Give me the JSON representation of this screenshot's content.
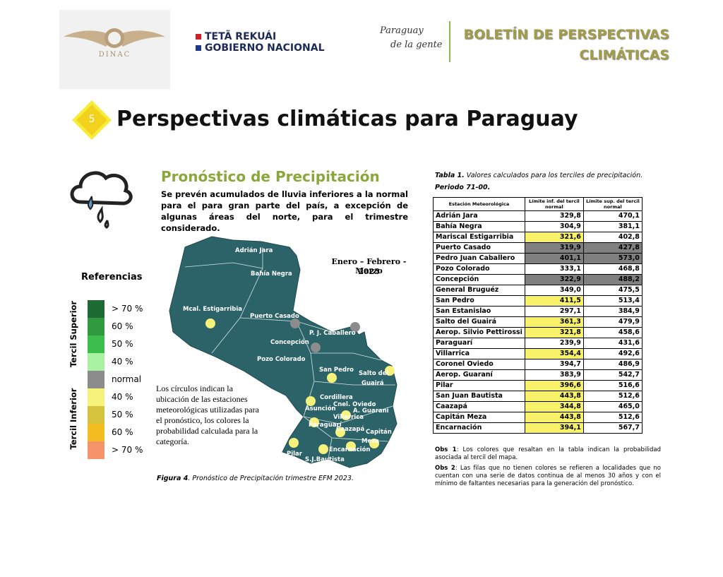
{
  "header": {
    "logo_text": "DINAC",
    "gov_line1": "TETÃ REKUÁI",
    "gov_line2": "GOBIERNO NACIONAL",
    "brand_line1": "Paraguay",
    "brand_line2": "de la gente",
    "bulletin_line1": "BOLETÍN DE PERSPECTIVAS",
    "bulletin_line2": "CLIMÁTICAS"
  },
  "section": {
    "number": "5",
    "title": "Perspectivas climáticas para Paraguay"
  },
  "forecast": {
    "title": "Pronóstico de Precipitación",
    "description": "Se prevén acumulados de lluvia inferiores a la normal para el para gran parte del país, a excepción de algunas áreas del norte, para el trimestre considerado."
  },
  "legend": {
    "title": "Referencias",
    "group_upper": "Tercil Superior",
    "group_lower": "Tercil Inferior",
    "items": [
      {
        "label": "> 70 %",
        "color": "#1d6a32"
      },
      {
        "label": "60 %",
        "color": "#2f9a3f"
      },
      {
        "label": "50 %",
        "color": "#3dbd4b"
      },
      {
        "label": "40 %",
        "color": "#a8f2a2"
      },
      {
        "label": "normal",
        "color": "#8c8c8c"
      },
      {
        "label": "40 %",
        "color": "#f6f27c"
      },
      {
        "label": "50 %",
        "color": "#d6c43e"
      },
      {
        "label": "60 %",
        "color": "#f3bd22"
      },
      {
        "label": "> 70 %",
        "color": "#f5946a"
      }
    ]
  },
  "map": {
    "period_line1": "Enero – Febrero - Marzo",
    "period_line2": "2023",
    "labels": [
      "Adrián Jara",
      "Bahía Negra",
      "Mcal. Estigarribia",
      "Puerto Casado",
      "P. J. Caballero",
      "Concepción",
      "Pozo Colorado",
      "San Pedro",
      "Salto del",
      "Guairá",
      "Cordillera",
      "Asunción",
      "Cnel. Oviedo",
      "A. Guarani",
      "Villarrica",
      "Paraguarí",
      "Caazapá",
      "Capitán",
      "Meza",
      "Pilar",
      "Encarnación",
      "S.J.Bautista"
    ],
    "note": "Los círculos indican la ubicación de las estaciones meteorológicas utilizadas para el pronóstico, los colores la probabilidad calculada para la categoría.",
    "caption_label": "Figura 4",
    "caption_text": ". Pronóstico de Precipitación trimestre EFM 2023."
  },
  "table": {
    "caption_label": "Tabla 1.",
    "caption_text": "Valores calculados para los terciles de precipitación.",
    "period": "Periodo 71-00.",
    "headers": [
      "Estación Meteorológica",
      "Límite inf. del tercil normal",
      "Límite sup. del tercil normal"
    ],
    "rows": [
      {
        "station": "Adrián Jara",
        "lower": "329,8",
        "upper": "470,1"
      },
      {
        "station": "Bahía Negra",
        "lower": "304,9",
        "upper": "381,1"
      },
      {
        "station": "Mariscal Estigarribia",
        "lower": "321,6",
        "upper": "402,8",
        "lower_color": "#f7f26a"
      },
      {
        "station": "Puerto Casado",
        "lower": "319,9",
        "upper": "427,8",
        "lower_color": "#808080",
        "upper_color": "#808080"
      },
      {
        "station": "Pedro Juan Caballero",
        "lower": "401,1",
        "upper": "573,0",
        "lower_color": "#808080",
        "upper_color": "#808080"
      },
      {
        "station": "Pozo Colorado",
        "lower": "333,1",
        "upper": "468,8"
      },
      {
        "station": "Concepción",
        "lower": "322,9",
        "upper": "488,2",
        "lower_color": "#808080",
        "upper_color": "#808080"
      },
      {
        "station": "General Bruguéz",
        "lower": "349,0",
        "upper": "475,5"
      },
      {
        "station": "San Pedro",
        "lower": "411,5",
        "upper": "513,4",
        "lower_color": "#f7f26a"
      },
      {
        "station": "San Estanislao",
        "lower": "297,1",
        "upper": "384,9"
      },
      {
        "station": "Salto del Guairá",
        "lower": "361,3",
        "upper": "479,9",
        "lower_color": "#f7f26a"
      },
      {
        "station": "Aerop. Silvio Pettirossi",
        "lower": "321,8",
        "upper": "458,6",
        "lower_color": "#f7f26a"
      },
      {
        "station": "Paraguarí",
        "lower": "239,9",
        "upper": "431,6"
      },
      {
        "station": "Villarrica",
        "lower": "354,4",
        "upper": "492,6",
        "lower_color": "#f7f26a"
      },
      {
        "station": "Coronel Oviedo",
        "lower": "394,7",
        "upper": "486,9"
      },
      {
        "station": "Aerop. Guaraní",
        "lower": "383,9",
        "upper": "542,7"
      },
      {
        "station": "Pilar",
        "lower": "396,6",
        "upper": "516,6",
        "lower_color": "#f7f26a"
      },
      {
        "station": "San Juan Bautista",
        "lower": "443,8",
        "upper": "512,6",
        "lower_color": "#f7f26a"
      },
      {
        "station": "Caazapá",
        "lower": "344,8",
        "upper": "465,0",
        "lower_color": "#f7f26a"
      },
      {
        "station": "Capitán Meza",
        "lower": "443,8",
        "upper": "512,6",
        "lower_color": "#f7f26a"
      },
      {
        "station": "Encarnación",
        "lower": "394,1",
        "upper": "567,7",
        "lower_color": "#f7f26a"
      }
    ],
    "obs1_label": "Obs 1",
    "obs1_text": ": Los colores que resaltan en la tabla indican la probabilidad asociada al tercil del mapa.",
    "obs2_label": "Obs 2",
    "obs2_text": ": Las filas que no tienen colores se refieren a localidades que no cuentan con una serie de datos continua de al menos 30 años y con el mínimo de faltantes necesarias para la generación del pronóstico."
  }
}
